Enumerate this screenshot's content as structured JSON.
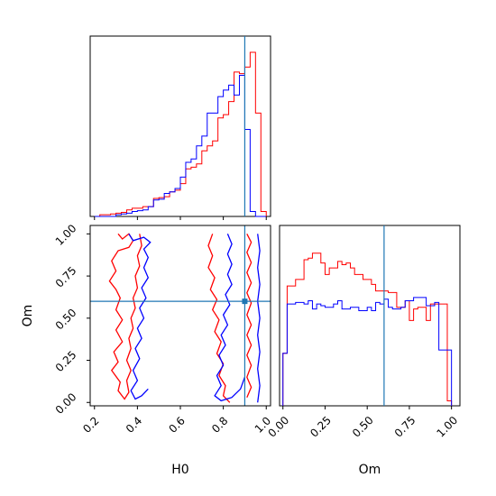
{
  "chart_data": [
    {
      "type": "histogram",
      "panel": "H0 marginal",
      "x": [
        0.2,
        0.225,
        0.25,
        0.275,
        0.3,
        0.325,
        0.35,
        0.375,
        0.4,
        0.425,
        0.45,
        0.475,
        0.5,
        0.525,
        0.55,
        0.575,
        0.6,
        0.625,
        0.65,
        0.675,
        0.7,
        0.725,
        0.75,
        0.775,
        0.8,
        0.825,
        0.85,
        0.875,
        0.9,
        0.925,
        0.95,
        0.975
      ],
      "series": [
        {
          "color": "#ff0000",
          "values": [
            0.0,
            0.01,
            0.01,
            0.015,
            0.02,
            0.025,
            0.04,
            0.05,
            0.05,
            0.06,
            0.06,
            0.11,
            0.115,
            0.12,
            0.15,
            0.16,
            0.2,
            0.29,
            0.3,
            0.32,
            0.4,
            0.43,
            0.46,
            0.6,
            0.62,
            0.7,
            0.88,
            0.87,
            0.91,
            1.0,
            0.63,
            0.03
          ]
        },
        {
          "color": "#0000ff",
          "values": [
            0.0,
            0.0,
            0.0,
            0.0,
            0.01,
            0.015,
            0.02,
            0.03,
            0.035,
            0.04,
            0.06,
            0.1,
            0.105,
            0.14,
            0.15,
            0.17,
            0.24,
            0.33,
            0.35,
            0.43,
            0.49,
            0.63,
            0.63,
            0.73,
            0.77,
            0.8,
            0.74,
            0.86,
            0.53,
            0.03,
            0.0,
            0.0
          ]
        }
      ],
      "truth_line": 0.9
    },
    {
      "type": "histogram",
      "panel": "Om marginal",
      "x": [
        0.0,
        0.025,
        0.05,
        0.075,
        0.1,
        0.125,
        0.15,
        0.175,
        0.2,
        0.225,
        0.25,
        0.275,
        0.3,
        0.325,
        0.35,
        0.375,
        0.4,
        0.425,
        0.45,
        0.475,
        0.5,
        0.525,
        0.55,
        0.575,
        0.6,
        0.625,
        0.65,
        0.675,
        0.7,
        0.725,
        0.75,
        0.775,
        0.8,
        0.825,
        0.85,
        0.875,
        0.9,
        0.925,
        0.95,
        0.975
      ],
      "series": [
        {
          "color": "#ff0000",
          "values": [
            0.32,
            0.73,
            0.73,
            0.77,
            0.77,
            0.89,
            0.9,
            0.93,
            0.93,
            0.87,
            0.8,
            0.84,
            0.84,
            0.88,
            0.86,
            0.87,
            0.84,
            0.8,
            0.8,
            0.77,
            0.77,
            0.74,
            0.7,
            0.7,
            0.7,
            0.69,
            0.69,
            0.6,
            0.6,
            0.64,
            0.52,
            0.59,
            0.6,
            0.6,
            0.52,
            0.62,
            0.62,
            0.62,
            0.62,
            0.03
          ]
        },
        {
          "color": "#0000ff",
          "values": [
            0.32,
            0.62,
            0.62,
            0.63,
            0.63,
            0.62,
            0.64,
            0.59,
            0.62,
            0.61,
            0.6,
            0.6,
            0.62,
            0.64,
            0.59,
            0.59,
            0.6,
            0.6,
            0.58,
            0.58,
            0.6,
            0.58,
            0.63,
            0.62,
            0.65,
            0.6,
            0.59,
            0.59,
            0.6,
            0.64,
            0.64,
            0.66,
            0.66,
            0.66,
            0.61,
            0.61,
            0.63,
            0.34,
            0.34,
            0.34
          ]
        }
      ],
      "truth_line": 0.6
    },
    {
      "type": "contour",
      "panel": "H0 vs Om joint",
      "xlim": [
        0.18,
        1.02
      ],
      "ylim": [
        -0.02,
        1.05
      ],
      "series": [
        {
          "color": "#ff0000",
          "level": "outer",
          "points": [
            [
              0.31,
              1.0
            ],
            [
              0.33,
              0.97
            ],
            [
              0.36,
              1.0
            ],
            [
              0.38,
              0.96
            ],
            [
              0.36,
              0.92
            ],
            [
              0.31,
              0.9
            ],
            [
              0.28,
              0.84
            ],
            [
              0.3,
              0.78
            ],
            [
              0.27,
              0.72
            ],
            [
              0.3,
              0.67
            ],
            [
              0.32,
              0.62
            ],
            [
              0.3,
              0.55
            ],
            [
              0.33,
              0.49
            ],
            [
              0.3,
              0.43
            ],
            [
              0.33,
              0.36
            ],
            [
              0.29,
              0.3
            ],
            [
              0.31,
              0.24
            ],
            [
              0.28,
              0.19
            ],
            [
              0.32,
              0.12
            ],
            [
              0.31,
              0.07
            ],
            [
              0.34,
              0.02
            ],
            [
              0.36,
              0.06
            ],
            [
              0.35,
              0.13
            ],
            [
              0.37,
              0.19
            ],
            [
              0.35,
              0.25
            ],
            [
              0.37,
              0.32
            ],
            [
              0.36,
              0.38
            ],
            [
              0.38,
              0.44
            ],
            [
              0.37,
              0.5
            ],
            [
              0.39,
              0.56
            ],
            [
              0.38,
              0.62
            ],
            [
              0.4,
              0.68
            ],
            [
              0.39,
              0.75
            ],
            [
              0.41,
              0.81
            ],
            [
              0.4,
              0.87
            ],
            [
              0.42,
              0.93
            ],
            [
              0.41,
              1.0
            ]
          ]
        },
        {
          "color": "#ff0000",
          "level": "outer",
          "points": [
            [
              0.75,
              1.0
            ],
            [
              0.73,
              0.93
            ],
            [
              0.75,
              0.87
            ],
            [
              0.73,
              0.8
            ],
            [
              0.76,
              0.74
            ],
            [
              0.74,
              0.67
            ],
            [
              0.77,
              0.61
            ],
            [
              0.75,
              0.55
            ],
            [
              0.78,
              0.49
            ],
            [
              0.76,
              0.42
            ],
            [
              0.79,
              0.36
            ],
            [
              0.77,
              0.29
            ],
            [
              0.8,
              0.23
            ],
            [
              0.78,
              0.16
            ],
            [
              0.81,
              0.1
            ],
            [
              0.8,
              0.04
            ],
            [
              0.83,
              0.0
            ]
          ]
        },
        {
          "color": "#ff0000",
          "level": "outer",
          "points": [
            [
              0.91,
              1.0
            ],
            [
              0.93,
              0.95
            ],
            [
              0.91,
              0.89
            ],
            [
              0.93,
              0.83
            ],
            [
              0.91,
              0.77
            ],
            [
              0.93,
              0.71
            ],
            [
              0.91,
              0.65
            ],
            [
              0.93,
              0.59
            ],
            [
              0.91,
              0.52
            ],
            [
              0.93,
              0.46
            ],
            [
              0.91,
              0.4
            ],
            [
              0.93,
              0.34
            ],
            [
              0.91,
              0.28
            ],
            [
              0.93,
              0.22
            ],
            [
              0.91,
              0.15
            ],
            [
              0.93,
              0.09
            ],
            [
              0.91,
              0.03
            ]
          ]
        },
        {
          "color": "#0000ff",
          "level": "inner",
          "points": [
            [
              0.36,
              1.0
            ],
            [
              0.38,
              0.96
            ],
            [
              0.43,
              0.98
            ],
            [
              0.46,
              0.95
            ],
            [
              0.43,
              0.91
            ],
            [
              0.45,
              0.86
            ],
            [
              0.43,
              0.8
            ],
            [
              0.45,
              0.74
            ],
            [
              0.42,
              0.68
            ],
            [
              0.44,
              0.62
            ],
            [
              0.41,
              0.56
            ],
            [
              0.43,
              0.5
            ],
            [
              0.4,
              0.44
            ],
            [
              0.42,
              0.38
            ],
            [
              0.39,
              0.32
            ],
            [
              0.41,
              0.26
            ],
            [
              0.38,
              0.19
            ],
            [
              0.4,
              0.13
            ],
            [
              0.37,
              0.07
            ],
            [
              0.39,
              0.02
            ],
            [
              0.42,
              0.04
            ],
            [
              0.45,
              0.08
            ]
          ]
        },
        {
          "color": "#0000ff",
          "level": "inner",
          "points": [
            [
              0.82,
              1.0
            ],
            [
              0.84,
              0.94
            ],
            [
              0.82,
              0.88
            ],
            [
              0.84,
              0.82
            ],
            [
              0.82,
              0.76
            ],
            [
              0.84,
              0.7
            ],
            [
              0.81,
              0.64
            ],
            [
              0.83,
              0.58
            ],
            [
              0.8,
              0.52
            ],
            [
              0.82,
              0.46
            ],
            [
              0.79,
              0.4
            ],
            [
              0.81,
              0.34
            ],
            [
              0.78,
              0.28
            ],
            [
              0.8,
              0.22
            ],
            [
              0.77,
              0.16
            ],
            [
              0.79,
              0.1
            ],
            [
              0.76,
              0.04
            ],
            [
              0.79,
              0.01
            ],
            [
              0.84,
              0.03
            ],
            [
              0.88,
              0.08
            ],
            [
              0.9,
              0.15
            ]
          ]
        },
        {
          "color": "#0000ff",
          "level": "inner",
          "points": [
            [
              0.96,
              1.0
            ],
            [
              0.97,
              0.9
            ],
            [
              0.96,
              0.8
            ],
            [
              0.97,
              0.7
            ],
            [
              0.96,
              0.6
            ],
            [
              0.97,
              0.5
            ],
            [
              0.96,
              0.4
            ],
            [
              0.97,
              0.3
            ],
            [
              0.96,
              0.2
            ],
            [
              0.97,
              0.1
            ],
            [
              0.96,
              0.0
            ]
          ]
        }
      ],
      "truth_point": [
        0.9,
        0.6
      ]
    }
  ],
  "axes": {
    "h0_ticks": [
      "0.2",
      "0.4",
      "0.6",
      "0.8",
      "1.0"
    ],
    "om_ticks": [
      "0.00",
      "0.25",
      "0.50",
      "0.75",
      "1.00"
    ],
    "h0_label": "H0",
    "om_label": "Om",
    "truth_color": "#1f77b4"
  }
}
